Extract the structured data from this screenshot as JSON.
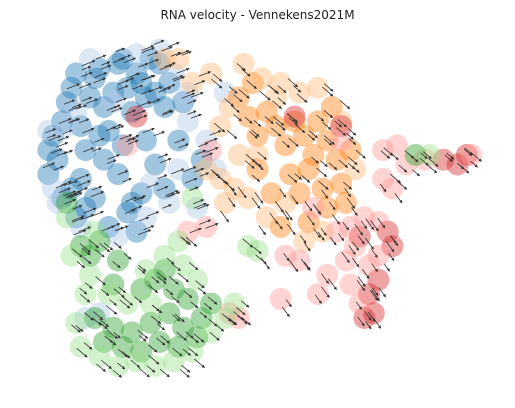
{
  "chart_data": {
    "type": "scatter",
    "title": "RNA velocity - Vennekens2021M",
    "xlabel": "",
    "ylabel": "",
    "axes_visible": false,
    "grid": false,
    "legend": "none",
    "arrows": true,
    "xlim": [
      0,
      10
    ],
    "ylim": [
      0,
      7.4
    ],
    "series": [
      {
        "color": "#1f77b4",
        "points": [
          [
            0.5,
            5.0
          ],
          [
            0.5,
            4.5
          ],
          [
            0.6,
            5.3
          ],
          [
            0.7,
            4.8
          ],
          [
            0.8,
            5.6
          ],
          [
            0.9,
            6.0
          ],
          [
            1.0,
            6.3
          ],
          [
            1.1,
            6.6
          ],
          [
            1.2,
            5.5
          ],
          [
            1.3,
            5.0
          ],
          [
            1.4,
            6.1
          ],
          [
            1.5,
            6.5
          ],
          [
            1.6,
            6.7
          ],
          [
            1.7,
            5.9
          ],
          [
            1.8,
            5.4
          ],
          [
            1.9,
            6.2
          ],
          [
            2.0,
            6.8
          ],
          [
            2.1,
            6.9
          ],
          [
            2.2,
            6.3
          ],
          [
            2.3,
            5.8
          ],
          [
            2.4,
            6.6
          ],
          [
            2.5,
            6.4
          ],
          [
            2.6,
            6.1
          ],
          [
            2.7,
            6.9
          ],
          [
            2.8,
            6.2
          ],
          [
            2.9,
            6.8
          ],
          [
            3.0,
            5.9
          ],
          [
            3.1,
            6.4
          ],
          [
            1.2,
            4.4
          ],
          [
            1.5,
            4.0
          ],
          [
            1.0,
            4.2
          ],
          [
            1.7,
            4.8
          ],
          [
            2.0,
            4.5
          ],
          [
            2.2,
            3.7
          ],
          [
            2.4,
            3.3
          ],
          [
            1.8,
            3.4
          ],
          [
            1.3,
            3.8
          ],
          [
            2.6,
            5.2
          ],
          [
            2.8,
            4.7
          ],
          [
            3.0,
            4.2
          ],
          [
            0.8,
            4.0
          ],
          [
            1.6,
            5.3
          ],
          [
            2.1,
            5.1
          ],
          [
            2.5,
            4.1
          ],
          [
            3.3,
            5.2
          ],
          [
            3.6,
            4.4
          ],
          [
            3.8,
            4.8
          ],
          [
            2.3,
            3.9
          ],
          [
            3.4,
            6.0
          ],
          [
            1.1,
            3.6
          ]
        ]
      },
      {
        "color": "#aec7e8",
        "points": [
          [
            0.6,
            4.2
          ],
          [
            0.9,
            5.5
          ],
          [
            1.4,
            6.9
          ],
          [
            2.4,
            7.0
          ],
          [
            2.9,
            7.1
          ],
          [
            3.2,
            6.6
          ],
          [
            3.5,
            6.2
          ],
          [
            0.7,
            3.9
          ],
          [
            1.2,
            3.4
          ],
          [
            2.0,
            3.2
          ],
          [
            2.6,
            3.6
          ],
          [
            3.1,
            3.9
          ],
          [
            3.5,
            5.6
          ],
          [
            3.9,
            5.2
          ],
          [
            4.1,
            4.6
          ],
          [
            0.5,
            5.4
          ],
          [
            2.7,
            4.3
          ],
          [
            3.3,
            4.6
          ],
          [
            1.9,
            6.0
          ],
          [
            1.1,
            5.8
          ],
          [
            4.3,
            6.2
          ],
          [
            3.7,
            3.8
          ],
          [
            1.3,
            1.5
          ],
          [
            1.6,
            1.6
          ]
        ]
      },
      {
        "color": "#ff7f0e",
        "points": [
          [
            4.8,
            5.7
          ],
          [
            5.0,
            5.3
          ],
          [
            5.2,
            5.8
          ],
          [
            5.4,
            5.5
          ],
          [
            5.6,
            5.1
          ],
          [
            5.8,
            5.6
          ],
          [
            6.0,
            5.3
          ],
          [
            6.2,
            4.9
          ],
          [
            5.7,
            4.5
          ],
          [
            5.9,
            4.1
          ],
          [
            6.1,
            4.6
          ],
          [
            6.3,
            5.6
          ],
          [
            6.5,
            5.2
          ],
          [
            6.7,
            4.8
          ],
          [
            6.9,
            3.9
          ],
          [
            6.5,
            3.8
          ],
          [
            6.1,
            3.5
          ],
          [
            5.5,
            3.4
          ],
          [
            5.3,
            4.1
          ],
          [
            5.0,
            4.6
          ],
          [
            6.8,
            4.3
          ],
          [
            6.4,
            4.2
          ],
          [
            7.0,
            5.0
          ],
          [
            6.6,
            5.9
          ],
          [
            4.6,
            6.1
          ],
          [
            4.9,
            6.4
          ]
        ]
      },
      {
        "color": "#ffbb78",
        "points": [
          [
            3.0,
            6.9
          ],
          [
            3.3,
            6.9
          ],
          [
            3.6,
            6.4
          ],
          [
            4.0,
            6.6
          ],
          [
            4.2,
            5.5
          ],
          [
            4.4,
            5.9
          ],
          [
            4.7,
            6.8
          ],
          [
            5.1,
            6.5
          ],
          [
            5.5,
            6.4
          ],
          [
            5.9,
            6.2
          ],
          [
            6.3,
            6.3
          ],
          [
            3.9,
            4.6
          ],
          [
            4.2,
            4.4
          ],
          [
            4.5,
            4.2
          ],
          [
            4.3,
            3.9
          ],
          [
            4.8,
            4.0
          ],
          [
            5.2,
            3.6
          ],
          [
            5.6,
            3.9
          ],
          [
            6.0,
            3.1
          ],
          [
            6.4,
            3.3
          ],
          [
            5.0,
            4.9
          ],
          [
            5.4,
            6.1
          ],
          [
            4.6,
            4.9
          ],
          [
            6.8,
            5.6
          ],
          [
            7.1,
            4.6
          ]
        ]
      },
      {
        "color": "#d62728",
        "points": [
          [
            9.0,
            4.8
          ],
          [
            9.3,
            4.7
          ],
          [
            9.5,
            4.9
          ],
          [
            7.4,
            2.0
          ],
          [
            7.6,
            2.3
          ],
          [
            7.5,
            1.6
          ],
          [
            7.3,
            1.5
          ],
          [
            7.8,
            3.3
          ],
          [
            7.9,
            3.0
          ],
          [
            6.8,
            5.5
          ],
          [
            7.2,
            3.2
          ],
          [
            5.8,
            5.7
          ],
          [
            2.4,
            5.7
          ]
        ]
      },
      {
        "color": "#ff9896",
        "points": [
          [
            8.6,
            4.8
          ],
          [
            8.2,
            4.7
          ],
          [
            7.7,
            4.4
          ],
          [
            7.9,
            4.2
          ],
          [
            7.6,
            3.5
          ],
          [
            7.3,
            3.6
          ],
          [
            7.0,
            3.4
          ],
          [
            6.7,
            3.3
          ],
          [
            7.1,
            3.0
          ],
          [
            7.4,
            2.6
          ],
          [
            7.6,
            2.8
          ],
          [
            6.9,
            2.7
          ],
          [
            7.0,
            2.2
          ],
          [
            7.2,
            1.8
          ],
          [
            6.5,
            2.4
          ],
          [
            6.3,
            2.0
          ],
          [
            5.9,
            2.7
          ],
          [
            5.6,
            2.8
          ],
          [
            6.8,
            5.2
          ],
          [
            7.7,
            5.0
          ],
          [
            8.0,
            5.1
          ],
          [
            6.2,
            3.8
          ],
          [
            3.9,
            3.4
          ],
          [
            3.5,
            3.3
          ],
          [
            5.5,
            1.9
          ],
          [
            4.4,
            1.6
          ],
          [
            4.6,
            1.5
          ],
          [
            9.6,
            4.9
          ],
          [
            4.0,
            5.0
          ],
          [
            2.2,
            5.1
          ]
        ]
      },
      {
        "color": "#2ca02c",
        "points": [
          [
            1.5,
            1.5
          ],
          [
            1.9,
            1.3
          ],
          [
            2.3,
            1.2
          ],
          [
            2.7,
            1.4
          ],
          [
            3.1,
            1.6
          ],
          [
            3.4,
            1.3
          ],
          [
            3.8,
            1.5
          ],
          [
            3.2,
            2.1
          ],
          [
            2.8,
            2.3
          ],
          [
            1.7,
            1.0
          ],
          [
            2.1,
            0.9
          ],
          [
            2.5,
            0.8
          ],
          [
            2.9,
            1.0
          ],
          [
            3.3,
            0.9
          ],
          [
            3.7,
            1.1
          ],
          [
            1.4,
            2.8
          ],
          [
            1.2,
            3.0
          ],
          [
            1.6,
            3.1
          ],
          [
            2.0,
            2.7
          ],
          [
            0.9,
            3.9
          ],
          [
            3.5,
            1.9
          ],
          [
            4.0,
            1.8
          ],
          [
            1.9,
            2.2
          ],
          [
            2.5,
            2.1
          ],
          [
            3.0,
            2.5
          ],
          [
            8.4,
            4.9
          ]
        ]
      },
      {
        "color": "#98df8a",
        "points": [
          [
            1.2,
            0.9
          ],
          [
            1.6,
            0.7
          ],
          [
            2.0,
            0.5
          ],
          [
            2.4,
            0.6
          ],
          [
            2.8,
            0.5
          ],
          [
            3.2,
            0.6
          ],
          [
            3.6,
            0.8
          ],
          [
            4.0,
            1.2
          ],
          [
            4.3,
            1.5
          ],
          [
            4.5,
            1.8
          ],
          [
            1.0,
            2.8
          ],
          [
            1.4,
            2.4
          ],
          [
            1.8,
            2.0
          ],
          [
            2.2,
            1.8
          ],
          [
            2.6,
            2.5
          ],
          [
            3.0,
            2.8
          ],
          [
            3.4,
            2.6
          ],
          [
            3.7,
            2.3
          ],
          [
            1.1,
            1.4
          ],
          [
            1.3,
            2.0
          ],
          [
            0.9,
            3.6
          ],
          [
            1.5,
            3.3
          ],
          [
            4.8,
            3.0
          ],
          [
            5.0,
            2.9
          ],
          [
            3.3,
            3.1
          ],
          [
            3.6,
            4.0
          ],
          [
            8.7,
            4.9
          ],
          [
            2.7,
            1.8
          ]
        ]
      }
    ]
  }
}
